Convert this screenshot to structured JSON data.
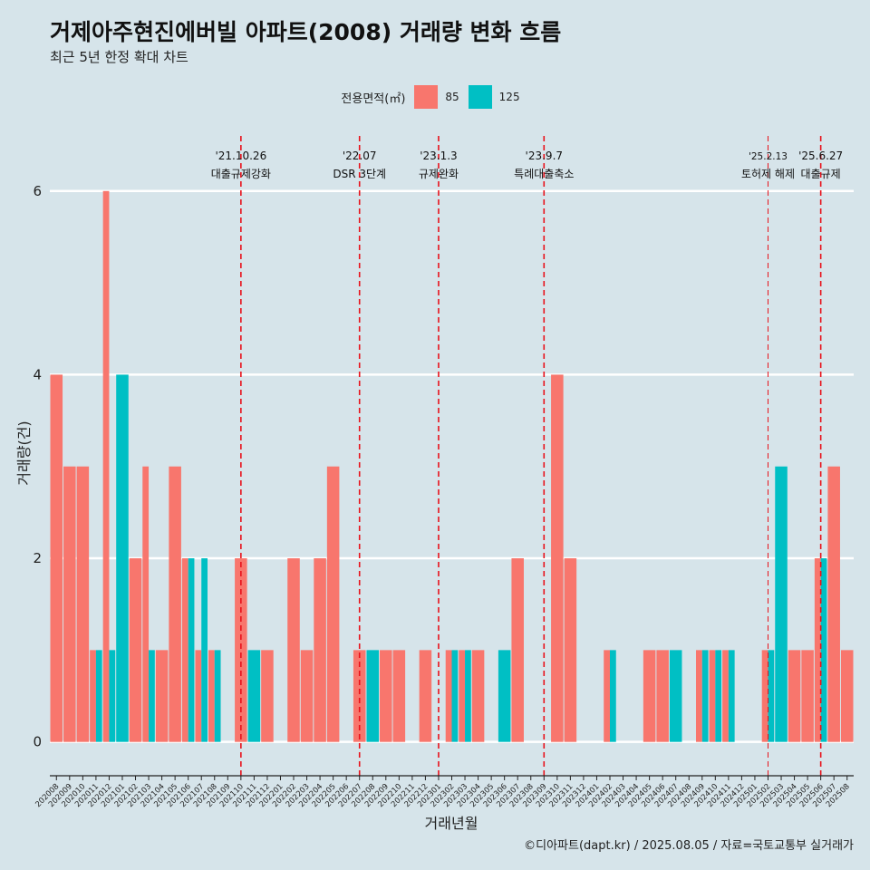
{
  "header": {
    "title": "거제아주현진에버빌 아파트(2008) 거래량 변화 흐름",
    "subtitle": "최근 5년 한정 확대 차트"
  },
  "legend": {
    "title": "전용면적(㎡)",
    "items": [
      {
        "label": "85",
        "color": "#f8766d"
      },
      {
        "label": "125",
        "color": "#00bfc4"
      }
    ]
  },
  "caption": "©디아파트(dapt.kr) / 2025.08.05 / 자료=국토교통부 실거래가",
  "chart_data": {
    "type": "bar",
    "xlabel": "거래년월",
    "ylabel": "거래량(건)",
    "ylim": [
      -0.25,
      6.6
    ],
    "yticks": [
      0,
      2,
      4,
      6
    ],
    "grid": true,
    "legend_position": "top",
    "categories": [
      "202008",
      "202009",
      "202010",
      "202011",
      "202012",
      "202101",
      "202102",
      "202103",
      "202104",
      "202105",
      "202106",
      "202107",
      "202108",
      "202109",
      "202110",
      "202111",
      "202112",
      "202201",
      "202202",
      "202203",
      "202204",
      "202205",
      "202206",
      "202207",
      "202208",
      "202209",
      "202210",
      "202211",
      "202212",
      "202301",
      "202302",
      "202303",
      "202304",
      "202305",
      "202306",
      "202307",
      "202308",
      "202309",
      "202310",
      "202311",
      "202312",
      "202401",
      "202402",
      "202403",
      "202404",
      "202405",
      "202406",
      "202407",
      "202408",
      "202409",
      "202410",
      "202411",
      "202412",
      "202501",
      "202502",
      "202503",
      "202504",
      "202505",
      "202506",
      "202507",
      "202508"
    ],
    "series": [
      {
        "name": "85",
        "color": "#f8766d",
        "values": [
          4,
          3,
          3,
          1,
          6,
          0,
          2,
          3,
          1,
          3,
          2,
          1,
          1,
          0,
          2,
          0,
          1,
          0,
          2,
          1,
          2,
          3,
          0,
          1,
          0,
          1,
          1,
          0,
          1,
          0,
          1,
          1,
          1,
          0,
          0,
          2,
          0,
          0,
          4,
          2,
          0,
          0,
          1,
          0,
          0,
          1,
          1,
          0,
          0,
          1,
          1,
          1,
          0,
          0,
          1,
          0,
          1,
          1,
          2,
          3,
          1
        ]
      },
      {
        "name": "125",
        "color": "#00bfc4",
        "values": [
          0,
          0,
          0,
          1,
          1,
          4,
          0,
          1,
          0,
          0,
          2,
          2,
          1,
          0,
          0,
          1,
          0,
          0,
          0,
          0,
          0,
          0,
          0,
          0,
          1,
          0,
          0,
          0,
          0,
          0,
          1,
          1,
          0,
          0,
          1,
          0,
          0,
          0,
          0,
          0,
          0,
          0,
          1,
          0,
          0,
          0,
          0,
          1,
          0,
          1,
          1,
          1,
          0,
          0,
          1,
          3,
          0,
          0,
          2,
          0,
          0
        ]
      }
    ],
    "events": [
      {
        "date": "'21.10.26",
        "label": "대출규제강화",
        "x": "202110",
        "style": "dashed"
      },
      {
        "date": "'22.07",
        "label": "DSR 3단계",
        "x": "202207",
        "style": "dashed"
      },
      {
        "date": "'23.1.3",
        "label": "규제완화",
        "x": "202301",
        "style": "dashed"
      },
      {
        "date": "'23.9.7",
        "label": "특례대출축소",
        "x": "202309",
        "style": "dashed"
      },
      {
        "date": "'25.2.13",
        "label": "토허제 해제",
        "x": "202502",
        "style": "thin-dashed"
      },
      {
        "date": "'25.6.27",
        "label": "대출규제",
        "x": "202506",
        "style": "dashed"
      }
    ]
  }
}
